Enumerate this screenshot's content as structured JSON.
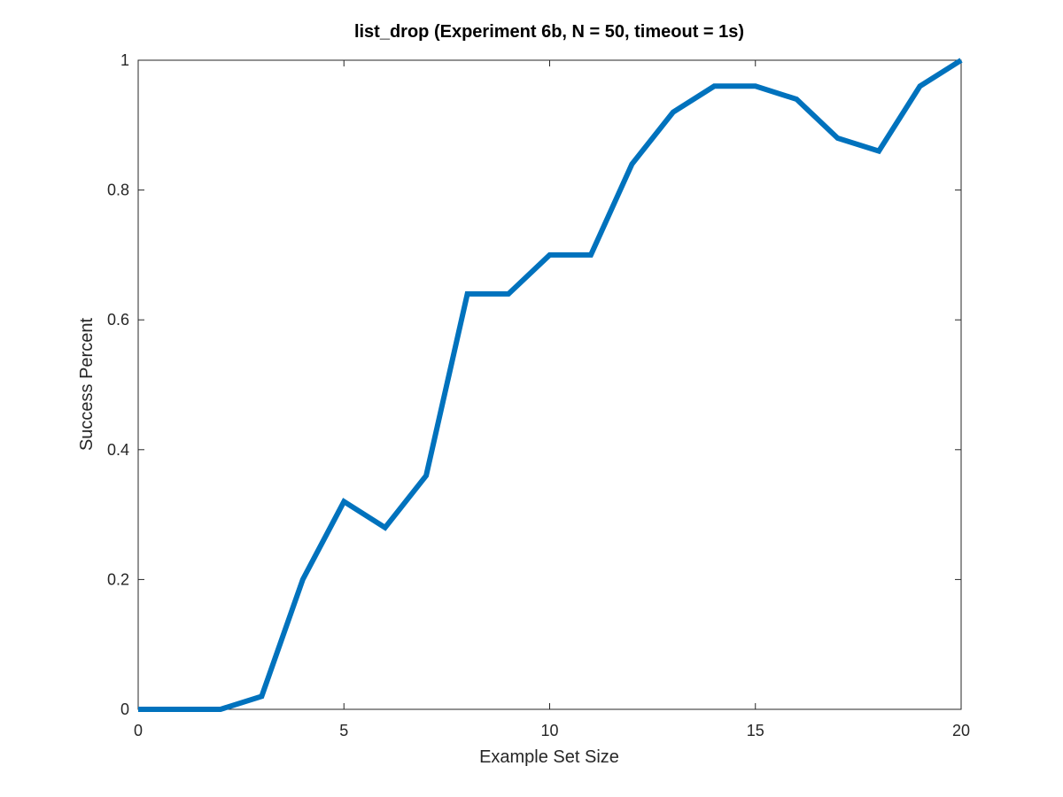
{
  "chart_data": {
    "type": "line",
    "title": "list_drop (Experiment 6b, N = 50, timeout = 1s)",
    "xlabel": "Example Set Size",
    "ylabel": "Success Percent",
    "xlim": [
      0,
      20
    ],
    "ylim": [
      0,
      1
    ],
    "xticks": [
      0,
      5,
      10,
      15,
      20
    ],
    "xtick_labels": [
      "0",
      "5",
      "10",
      "15",
      "20"
    ],
    "yticks": [
      0,
      0.2,
      0.4,
      0.6,
      0.8,
      1
    ],
    "ytick_labels": [
      "0",
      "0.2",
      "0.4",
      "0.6",
      "0.8",
      "1"
    ],
    "grid": false,
    "series": [
      {
        "color": "#0072BD",
        "x": [
          0,
          1,
          2,
          3,
          4,
          5,
          6,
          7,
          8,
          9,
          10,
          11,
          12,
          13,
          14,
          15,
          16,
          17,
          18,
          19,
          20
        ],
        "y": [
          0,
          0,
          0,
          0.02,
          0.2,
          0.32,
          0.28,
          0.36,
          0.64,
          0.64,
          0.7,
          0.7,
          0.84,
          0.92,
          0.96,
          0.96,
          0.94,
          0.88,
          0.86,
          0.96,
          1.0
        ]
      }
    ]
  }
}
